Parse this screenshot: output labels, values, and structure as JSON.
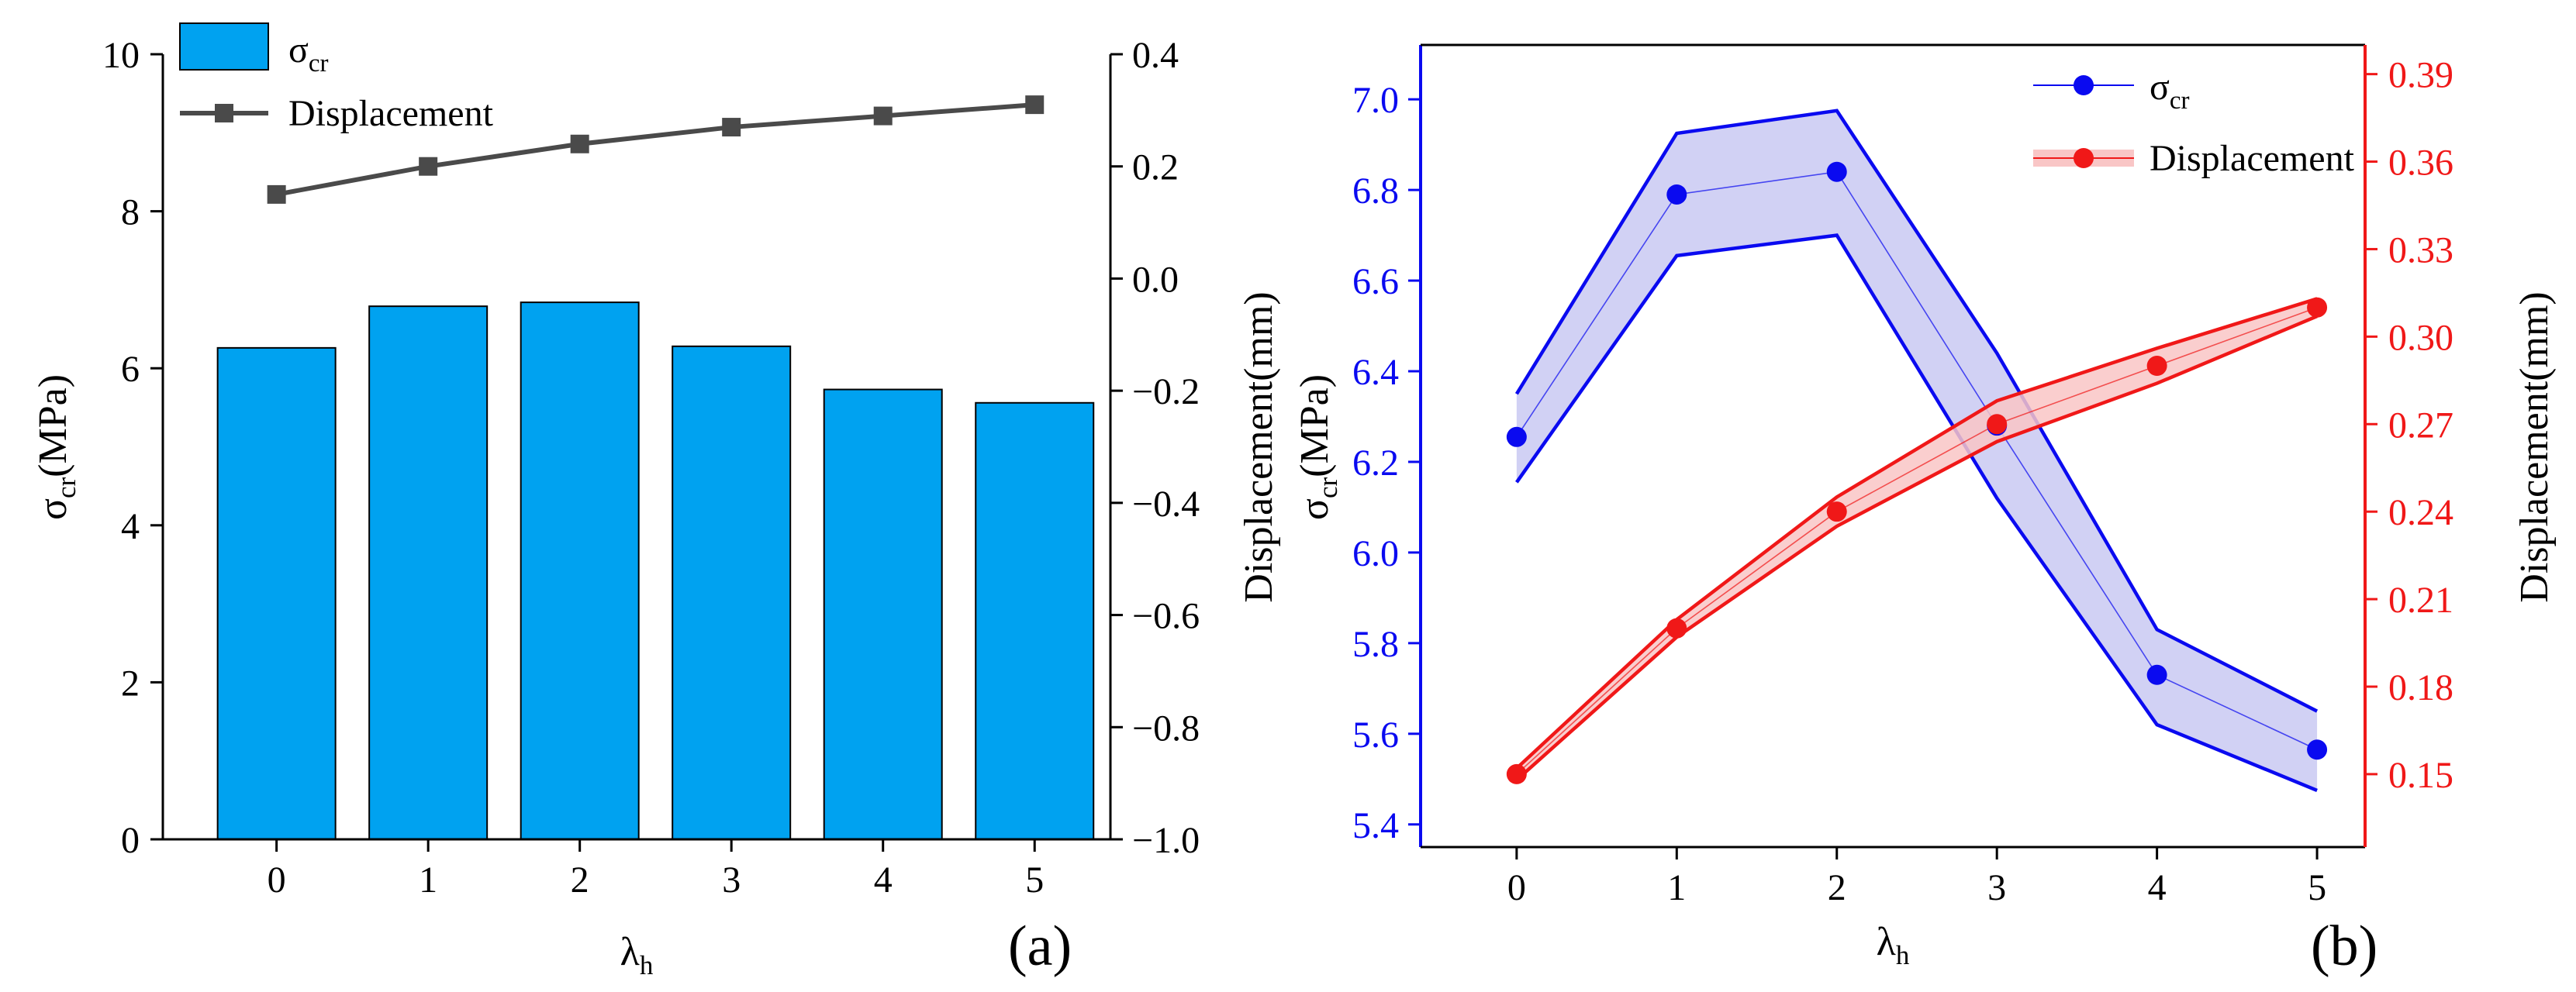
{
  "figure": {
    "panel_a_label": "(a)",
    "panel_b_label": "(b)"
  },
  "chart_data": [
    {
      "type": "bar",
      "panel": "(a)",
      "x": [
        0,
        1,
        2,
        3,
        4,
        5
      ],
      "x_tick_labels": [
        "0",
        "1",
        "2",
        "3",
        "4",
        "5"
      ],
      "xlabel": {
        "base": "λ",
        "sub": "h"
      },
      "ylabel_left": {
        "base": "σ",
        "sub": "cr",
        "suffix": "(MPa)"
      },
      "ylabel_right": "Displacement(mm)",
      "ylim_left": [
        0,
        10
      ],
      "ylim_right": [
        -1.0,
        0.4
      ],
      "y_ticks_left": [
        0,
        2,
        4,
        6,
        8,
        10
      ],
      "y_tick_labels_left": [
        "0",
        "2",
        "4",
        "6",
        "8",
        "10"
      ],
      "y_ticks_right": [
        -1.0,
        -0.8,
        -0.6,
        -0.4,
        -0.2,
        0.0,
        0.2,
        0.4
      ],
      "y_tick_labels_right": [
        "−1.0",
        "−0.8",
        "−0.6",
        "−0.4",
        "−0.2",
        "0.0",
        "0.2",
        "0.4"
      ],
      "grid": false,
      "legend_position": "top-left",
      "series": [
        {
          "name": "σcr",
          "name_base": "σ",
          "name_sub": "cr",
          "kind": "bar",
          "axis": "left",
          "color": "#00A2F0",
          "values": [
            6.26,
            6.79,
            6.84,
            6.28,
            5.73,
            5.56
          ]
        },
        {
          "name": "Displacement",
          "kind": "line-square",
          "axis": "right",
          "color": "#4A4A4A",
          "values": [
            0.15,
            0.2,
            0.24,
            0.27,
            0.29,
            0.31
          ]
        }
      ]
    },
    {
      "type": "line",
      "panel": "(b)",
      "x": [
        0,
        1,
        2,
        3,
        4,
        5
      ],
      "x_tick_labels": [
        "0",
        "1",
        "2",
        "3",
        "4",
        "5"
      ],
      "xlabel": {
        "base": "λ",
        "sub": "h"
      },
      "ylabel_left": {
        "base": "σ",
        "sub": "cr",
        "suffix": "(MPa)"
      },
      "ylabel_right": "Displacement(mm)",
      "ylim_left": [
        5.35,
        7.12
      ],
      "ylim_right": [
        0.125,
        0.4
      ],
      "y_ticks_left": [
        5.4,
        5.6,
        5.8,
        6.0,
        6.2,
        6.4,
        6.6,
        6.8,
        7.0
      ],
      "y_tick_labels_left": [
        "5.4",
        "5.6",
        "5.8",
        "6.0",
        "6.2",
        "6.4",
        "6.6",
        "6.8",
        "7.0"
      ],
      "y_ticks_right": [
        0.15,
        0.18,
        0.21,
        0.24,
        0.27,
        0.3,
        0.33,
        0.36,
        0.39
      ],
      "y_tick_labels_right": [
        "0.15",
        "0.18",
        "0.21",
        "0.24",
        "0.27",
        "0.30",
        "0.33",
        "0.36",
        "0.39"
      ],
      "grid": false,
      "legend_position": "top-right",
      "series": [
        {
          "name": "σcr",
          "name_base": "σ",
          "name_sub": "cr",
          "axis": "left",
          "color": "#0A0AF0",
          "fill": "#C9C9F2",
          "values": [
            6.255,
            6.79,
            6.84,
            6.28,
            5.73,
            5.565
          ],
          "band_upper": [
            6.35,
            6.925,
            6.975,
            6.44,
            5.83,
            5.65
          ],
          "band_lower": [
            6.155,
            6.655,
            6.7,
            6.12,
            5.62,
            5.475
          ]
        },
        {
          "name": "Displacement",
          "axis": "right",
          "color": "#F01818",
          "fill": "#F9C6C6",
          "values": [
            0.15,
            0.2,
            0.24,
            0.27,
            0.29,
            0.31
          ],
          "band_upper": [
            0.152,
            0.203,
            0.245,
            0.278,
            0.296,
            0.313
          ],
          "band_lower": [
            0.148,
            0.197,
            0.235,
            0.264,
            0.284,
            0.307
          ]
        }
      ]
    }
  ]
}
